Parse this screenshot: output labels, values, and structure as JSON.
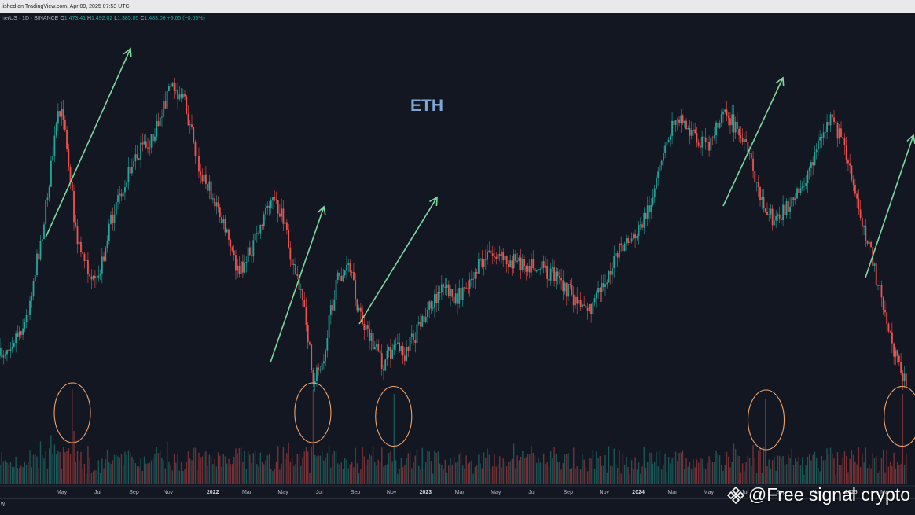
{
  "header": {
    "published": "lished on TradingView.com, Apr 09, 2025 07:53 UTC"
  },
  "legend": {
    "symbol": "herUS · 1D · BINANCE",
    "o_label": "O",
    "o_value": "1,473.41",
    "h_label": "H",
    "h_value": "1,492.02",
    "l_label": "L",
    "l_value": "1,385.05",
    "c_label": "C",
    "c_value": "1,483.06",
    "change": "+9.65 (+0.65%)"
  },
  "bottom": {
    "tool_label": "w"
  },
  "watermark": {
    "text": "@Free signal crypto",
    "icon": "binance-diamond-icon"
  },
  "colors": {
    "background": "#131722",
    "up": "#26a69a",
    "down": "#ef5350",
    "arrow": "#7fd8a0",
    "circle": "#f0a36b",
    "annotation_text": "#7fa7d6"
  },
  "chart_data": {
    "type": "candlestick",
    "symbol_note": "ETH",
    "annotation": "ETH",
    "x_axis": {
      "ticks": [
        {
          "t": 2021.29,
          "label": "May"
        },
        {
          "t": 2021.46,
          "label": "Jul"
        },
        {
          "t": 2021.63,
          "label": "Sep"
        },
        {
          "t": 2021.79,
          "label": "Nov"
        },
        {
          "t": 2022.0,
          "label": "2022"
        },
        {
          "t": 2022.16,
          "label": "Mar"
        },
        {
          "t": 2022.33,
          "label": "May"
        },
        {
          "t": 2022.5,
          "label": "Jul"
        },
        {
          "t": 2022.67,
          "label": "Sep"
        },
        {
          "t": 2022.84,
          "label": "Nov"
        },
        {
          "t": 2023.0,
          "label": "2023"
        },
        {
          "t": 2023.16,
          "label": "Mar"
        },
        {
          "t": 2023.33,
          "label": "May"
        },
        {
          "t": 2023.5,
          "label": "Jul"
        },
        {
          "t": 2023.67,
          "label": "Sep"
        },
        {
          "t": 2023.84,
          "label": "Nov"
        },
        {
          "t": 2024.0,
          "label": "2024"
        },
        {
          "t": 2024.16,
          "label": "Mar"
        },
        {
          "t": 2024.33,
          "label": "May"
        },
        {
          "t": 2024.5,
          "label": "Jul"
        },
        {
          "t": 2024.67,
          "label": "Sep"
        },
        {
          "t": 2024.84,
          "label": "Nov"
        },
        {
          "t": 2025.0,
          "label": "2025"
        },
        {
          "t": 2025.16,
          "label": "Mar"
        }
      ]
    },
    "price_path_rel": [
      [
        2021.0,
        0.92
      ],
      [
        2021.12,
        0.82
      ],
      [
        2021.2,
        0.55
      ],
      [
        2021.27,
        0.22
      ],
      [
        2021.3,
        0.2
      ],
      [
        2021.36,
        0.58
      ],
      [
        2021.45,
        0.72
      ],
      [
        2021.55,
        0.45
      ],
      [
        2021.65,
        0.32
      ],
      [
        2021.72,
        0.28
      ],
      [
        2021.8,
        0.12
      ],
      [
        2021.86,
        0.15
      ],
      [
        2021.93,
        0.35
      ],
      [
        2022.0,
        0.45
      ],
      [
        2022.06,
        0.55
      ],
      [
        2022.12,
        0.68
      ],
      [
        2022.2,
        0.58
      ],
      [
        2022.27,
        0.45
      ],
      [
        2022.32,
        0.5
      ],
      [
        2022.38,
        0.65
      ],
      [
        2022.44,
        0.82
      ],
      [
        2022.47,
        1.0
      ],
      [
        2022.52,
        0.92
      ],
      [
        2022.58,
        0.7
      ],
      [
        2022.64,
        0.66
      ],
      [
        2022.7,
        0.82
      ],
      [
        2022.8,
        0.95
      ],
      [
        2022.86,
        0.88
      ],
      [
        2022.9,
        0.92
      ],
      [
        2023.0,
        0.8
      ],
      [
        2023.08,
        0.72
      ],
      [
        2023.15,
        0.75
      ],
      [
        2023.22,
        0.68
      ],
      [
        2023.3,
        0.62
      ],
      [
        2023.4,
        0.64
      ],
      [
        2023.5,
        0.65
      ],
      [
        2023.6,
        0.68
      ],
      [
        2023.7,
        0.75
      ],
      [
        2023.78,
        0.78
      ],
      [
        2023.84,
        0.7
      ],
      [
        2023.92,
        0.6
      ],
      [
        2024.0,
        0.55
      ],
      [
        2024.07,
        0.45
      ],
      [
        2024.13,
        0.3
      ],
      [
        2024.18,
        0.2
      ],
      [
        2024.25,
        0.26
      ],
      [
        2024.33,
        0.3
      ],
      [
        2024.4,
        0.18
      ],
      [
        2024.46,
        0.25
      ],
      [
        2024.52,
        0.33
      ],
      [
        2024.58,
        0.46
      ],
      [
        2024.64,
        0.52
      ],
      [
        2024.7,
        0.48
      ],
      [
        2024.76,
        0.44
      ],
      [
        2024.84,
        0.3
      ],
      [
        2024.9,
        0.22
      ],
      [
        2024.96,
        0.28
      ],
      [
        2025.02,
        0.45
      ],
      [
        2025.08,
        0.58
      ],
      [
        2025.14,
        0.75
      ],
      [
        2025.22,
        0.95
      ],
      [
        2025.26,
        1.0
      ]
    ],
    "trend_arrows_rel": [
      {
        "from": [
          2021.1,
          0.74
        ],
        "to": [
          2021.8,
          0.06
        ]
      },
      {
        "from": [
          2022.48,
          1.0
        ],
        "to": [
          2022.75,
          0.59
        ]
      },
      {
        "from": [
          2022.82,
          0.92
        ],
        "to": [
          2023.28,
          0.57
        ]
      },
      {
        "from": [
          2024.64,
          0.59
        ],
        "to": [
          2024.93,
          0.2
        ]
      },
      {
        "from": [
          2025.22,
          0.95
        ],
        "to": [
          2025.49,
          0.38
        ]
      }
    ],
    "volume_spikes_rel": [
      {
        "t": 2021.34,
        "v": 1.0
      },
      {
        "t": 2022.47,
        "v": 1.0
      },
      {
        "t": 2022.85,
        "v": 0.95
      },
      {
        "t": 2024.6,
        "v": 0.9
      },
      {
        "t": 2025.24,
        "v": 0.95
      }
    ],
    "highlighted_volume_rel": [
      {
        "t": 2021.34,
        "v": 1.0
      },
      {
        "t": 2022.47,
        "v": 1.0
      },
      {
        "t": 2022.85,
        "v": 0.95
      },
      {
        "t": 2024.6,
        "v": 0.9
      },
      {
        "t": 2025.24,
        "v": 0.95
      }
    ],
    "grid": false
  }
}
